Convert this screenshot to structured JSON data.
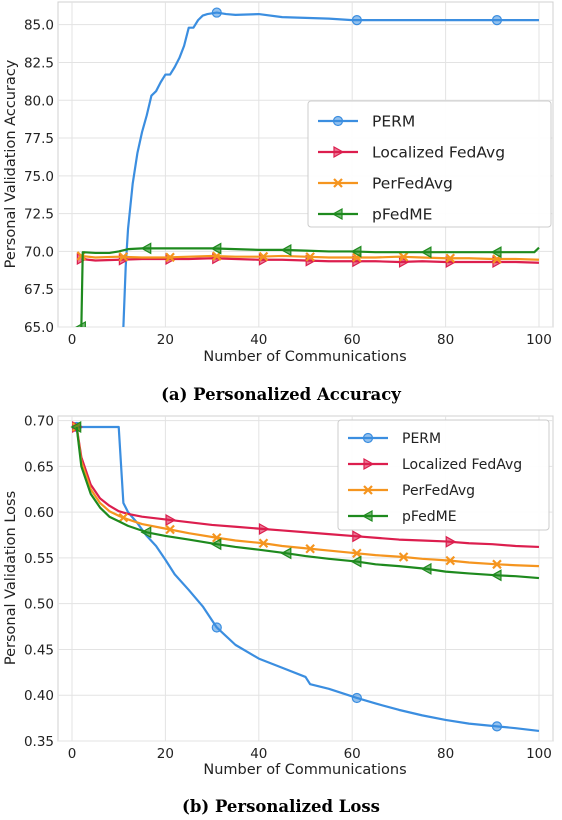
{
  "chart_data": [
    {
      "type": "line",
      "caption": "(a) Personalized Accuracy",
      "xlabel": "Number of Communications",
      "ylabel": "Personal Validation Accuracy",
      "xlim": [
        -3,
        103
      ],
      "ylim": [
        65.0,
        86.5
      ],
      "xticks": [
        0,
        20,
        40,
        60,
        80,
        100
      ],
      "yticks": [
        65.0,
        67.5,
        70.0,
        72.5,
        75.0,
        77.5,
        80.0,
        82.5,
        85.0
      ],
      "ytick_labels": [
        "65.0",
        "67.5",
        "70.0",
        "72.5",
        "75.0",
        "77.5",
        "80.0",
        "82.5",
        "85.0"
      ],
      "grid": true,
      "legend_position": "center-right",
      "series": [
        {
          "name": "PERM",
          "color": "#3b8ee0",
          "marker": "circle",
          "points": [
            [
              11,
              65.0
            ],
            [
              11.5,
              69.0
            ],
            [
              12,
              71.5
            ],
            [
              13,
              74.5
            ],
            [
              14,
              76.5
            ],
            [
              15,
              77.9
            ],
            [
              16,
              79.0
            ],
            [
              17,
              80.3
            ],
            [
              18,
              80.6
            ],
            [
              19,
              81.2
            ],
            [
              20,
              81.7
            ],
            [
              21,
              81.7
            ],
            [
              22,
              82.2
            ],
            [
              23,
              82.8
            ],
            [
              24,
              83.6
            ],
            [
              25,
              84.8
            ],
            [
              26,
              84.8
            ],
            [
              27,
              85.3
            ],
            [
              28,
              85.6
            ],
            [
              29,
              85.7
            ],
            [
              30,
              85.75
            ],
            [
              31,
              85.8
            ],
            [
              33,
              85.7
            ],
            [
              35,
              85.65
            ],
            [
              40,
              85.7
            ],
            [
              45,
              85.5
            ],
            [
              50,
              85.45
            ],
            [
              55,
              85.4
            ],
            [
              60,
              85.3
            ],
            [
              61,
              85.3
            ],
            [
              70,
              85.3
            ],
            [
              80,
              85.3
            ],
            [
              90,
              85.3
            ],
            [
              91,
              85.3
            ],
            [
              100,
              85.3
            ]
          ],
          "markers_at": [
            31,
            61,
            91
          ]
        },
        {
          "name": "Localized FedAvg",
          "color": "#dc1e4e",
          "marker": "triangle-right",
          "points": [
            [
              2,
              69.5
            ],
            [
              5,
              69.4
            ],
            [
              10,
              69.45
            ],
            [
              15,
              69.5
            ],
            [
              20,
              69.5
            ],
            [
              25,
              69.5
            ],
            [
              30,
              69.55
            ],
            [
              35,
              69.5
            ],
            [
              40,
              69.45
            ],
            [
              45,
              69.45
            ],
            [
              50,
              69.4
            ],
            [
              55,
              69.35
            ],
            [
              60,
              69.35
            ],
            [
              65,
              69.35
            ],
            [
              70,
              69.3
            ],
            [
              75,
              69.35
            ],
            [
              80,
              69.3
            ],
            [
              85,
              69.3
            ],
            [
              90,
              69.3
            ],
            [
              95,
              69.3
            ],
            [
              100,
              69.25
            ]
          ],
          "markers_at": [
            2,
            11,
            21,
            31,
            41,
            51,
            61,
            71,
            81,
            91
          ]
        },
        {
          "name": "PerFedAvg",
          "color": "#f5951f",
          "marker": "x",
          "points": [
            [
              2,
              69.7
            ],
            [
              5,
              69.6
            ],
            [
              10,
              69.65
            ],
            [
              15,
              69.6
            ],
            [
              20,
              69.6
            ],
            [
              25,
              69.65
            ],
            [
              30,
              69.7
            ],
            [
              35,
              69.65
            ],
            [
              40,
              69.65
            ],
            [
              45,
              69.7
            ],
            [
              50,
              69.65
            ],
            [
              55,
              69.6
            ],
            [
              60,
              69.6
            ],
            [
              65,
              69.6
            ],
            [
              70,
              69.65
            ],
            [
              75,
              69.6
            ],
            [
              80,
              69.55
            ],
            [
              85,
              69.55
            ],
            [
              90,
              69.5
            ],
            [
              95,
              69.5
            ],
            [
              100,
              69.45
            ]
          ],
          "markers_at": [
            2,
            11,
            21,
            31,
            41,
            51,
            61,
            71,
            81,
            91
          ]
        },
        {
          "name": "pFedME",
          "color": "#1e8a1e",
          "marker": "triangle-left",
          "points": [
            [
              2,
              65.0
            ],
            [
              2.3,
              69.95
            ],
            [
              5,
              69.9
            ],
            [
              8,
              69.9
            ],
            [
              10,
              70.0
            ],
            [
              12,
              70.15
            ],
            [
              15,
              70.2
            ],
            [
              20,
              70.2
            ],
            [
              25,
              70.2
            ],
            [
              30,
              70.2
            ],
            [
              35,
              70.15
            ],
            [
              40,
              70.1
            ],
            [
              45,
              70.1
            ],
            [
              50,
              70.05
            ],
            [
              55,
              70.0
            ],
            [
              60,
              70.0
            ],
            [
              65,
              69.95
            ],
            [
              70,
              69.95
            ],
            [
              75,
              69.95
            ],
            [
              80,
              69.95
            ],
            [
              85,
              69.95
            ],
            [
              90,
              69.95
            ],
            [
              95,
              69.95
            ],
            [
              99,
              69.95
            ],
            [
              100,
              70.25
            ]
          ],
          "markers_at": [
            2,
            16,
            31,
            46,
            61,
            76,
            91
          ]
        }
      ]
    },
    {
      "type": "line",
      "caption": "(b) Personalized Loss",
      "xlabel": "Number of Communications",
      "ylabel": "Personal Validation Loss",
      "xlim": [
        -3,
        103
      ],
      "ylim": [
        0.35,
        0.705
      ],
      "xticks": [
        0,
        20,
        40,
        60,
        80,
        100
      ],
      "yticks": [
        0.35,
        0.4,
        0.45,
        0.5,
        0.55,
        0.6,
        0.65,
        0.7
      ],
      "ytick_labels": [
        "0.35",
        "0.40",
        "0.45",
        "0.50",
        "0.55",
        "0.60",
        "0.65",
        "0.70"
      ],
      "grid": true,
      "legend_position": "top-right",
      "series": [
        {
          "name": "PERM",
          "color": "#3b8ee0",
          "marker": "circle",
          "points": [
            [
              1,
              0.693
            ],
            [
              5,
              0.693
            ],
            [
              10,
              0.693
            ],
            [
              11,
              0.61
            ],
            [
              12,
              0.6
            ],
            [
              14,
              0.588
            ],
            [
              16,
              0.574
            ],
            [
              18,
              0.563
            ],
            [
              20,
              0.548
            ],
            [
              22,
              0.532
            ],
            [
              25,
              0.515
            ],
            [
              28,
              0.497
            ],
            [
              31,
              0.474
            ],
            [
              35,
              0.455
            ],
            [
              40,
              0.44
            ],
            [
              45,
              0.43
            ],
            [
              50,
              0.42
            ],
            [
              51,
              0.412
            ],
            [
              55,
              0.407
            ],
            [
              61,
              0.397
            ],
            [
              65,
              0.391
            ],
            [
              70,
              0.384
            ],
            [
              75,
              0.378
            ],
            [
              80,
              0.373
            ],
            [
              85,
              0.369
            ],
            [
              91,
              0.366
            ],
            [
              95,
              0.364
            ],
            [
              100,
              0.361
            ]
          ],
          "markers_at": [
            1,
            31,
            61,
            91
          ]
        },
        {
          "name": "Localized FedAvg",
          "color": "#dc1e4e",
          "marker": "triangle-right",
          "points": [
            [
              1,
              0.693
            ],
            [
              2,
              0.66
            ],
            [
              4,
              0.63
            ],
            [
              6,
              0.615
            ],
            [
              8,
              0.607
            ],
            [
              10,
              0.601
            ],
            [
              12,
              0.598
            ],
            [
              15,
              0.595
            ],
            [
              20,
              0.592
            ],
            [
              25,
              0.589
            ],
            [
              30,
              0.586
            ],
            [
              35,
              0.584
            ],
            [
              40,
              0.582
            ],
            [
              45,
              0.58
            ],
            [
              50,
              0.578
            ],
            [
              55,
              0.576
            ],
            [
              60,
              0.574
            ],
            [
              65,
              0.572
            ],
            [
              70,
              0.57
            ],
            [
              75,
              0.569
            ],
            [
              80,
              0.568
            ],
            [
              85,
              0.566
            ],
            [
              90,
              0.565
            ],
            [
              95,
              0.563
            ],
            [
              100,
              0.562
            ]
          ],
          "markers_at": [
            1,
            21,
            41,
            61,
            81
          ]
        },
        {
          "name": "PerFedAvg",
          "color": "#f5951f",
          "marker": "x",
          "points": [
            [
              1,
              0.693
            ],
            [
              2,
              0.655
            ],
            [
              4,
              0.625
            ],
            [
              6,
              0.61
            ],
            [
              8,
              0.601
            ],
            [
              10,
              0.596
            ],
            [
              12,
              0.592
            ],
            [
              15,
              0.587
            ],
            [
              20,
              0.582
            ],
            [
              25,
              0.577
            ],
            [
              31,
              0.572
            ],
            [
              35,
              0.569
            ],
            [
              41,
              0.566
            ],
            [
              45,
              0.563
            ],
            [
              51,
              0.56
            ],
            [
              55,
              0.558
            ],
            [
              61,
              0.555
            ],
            [
              65,
              0.553
            ],
            [
              71,
              0.551
            ],
            [
              75,
              0.549
            ],
            [
              81,
              0.547
            ],
            [
              85,
              0.545
            ],
            [
              91,
              0.543
            ],
            [
              95,
              0.542
            ],
            [
              100,
              0.541
            ]
          ],
          "markers_at": [
            1,
            11,
            21,
            31,
            41,
            51,
            61,
            71,
            81,
            91
          ]
        },
        {
          "name": "pFedME",
          "color": "#1e8a1e",
          "marker": "triangle-left",
          "points": [
            [
              1,
              0.693
            ],
            [
              2,
              0.65
            ],
            [
              4,
              0.62
            ],
            [
              6,
              0.605
            ],
            [
              8,
              0.595
            ],
            [
              10,
              0.59
            ],
            [
              12,
              0.585
            ],
            [
              16,
              0.578
            ],
            [
              20,
              0.574
            ],
            [
              25,
              0.57
            ],
            [
              31,
              0.565
            ],
            [
              35,
              0.562
            ],
            [
              40,
              0.559
            ],
            [
              46,
              0.555
            ],
            [
              50,
              0.552
            ],
            [
              55,
              0.549
            ],
            [
              61,
              0.546
            ],
            [
              65,
              0.543
            ],
            [
              70,
              0.541
            ],
            [
              76,
              0.538
            ],
            [
              80,
              0.535
            ],
            [
              85,
              0.533
            ],
            [
              91,
              0.531
            ],
            [
              95,
              0.53
            ],
            [
              100,
              0.528
            ]
          ],
          "markers_at": [
            1,
            16,
            31,
            46,
            61,
            76,
            91
          ]
        }
      ]
    }
  ]
}
